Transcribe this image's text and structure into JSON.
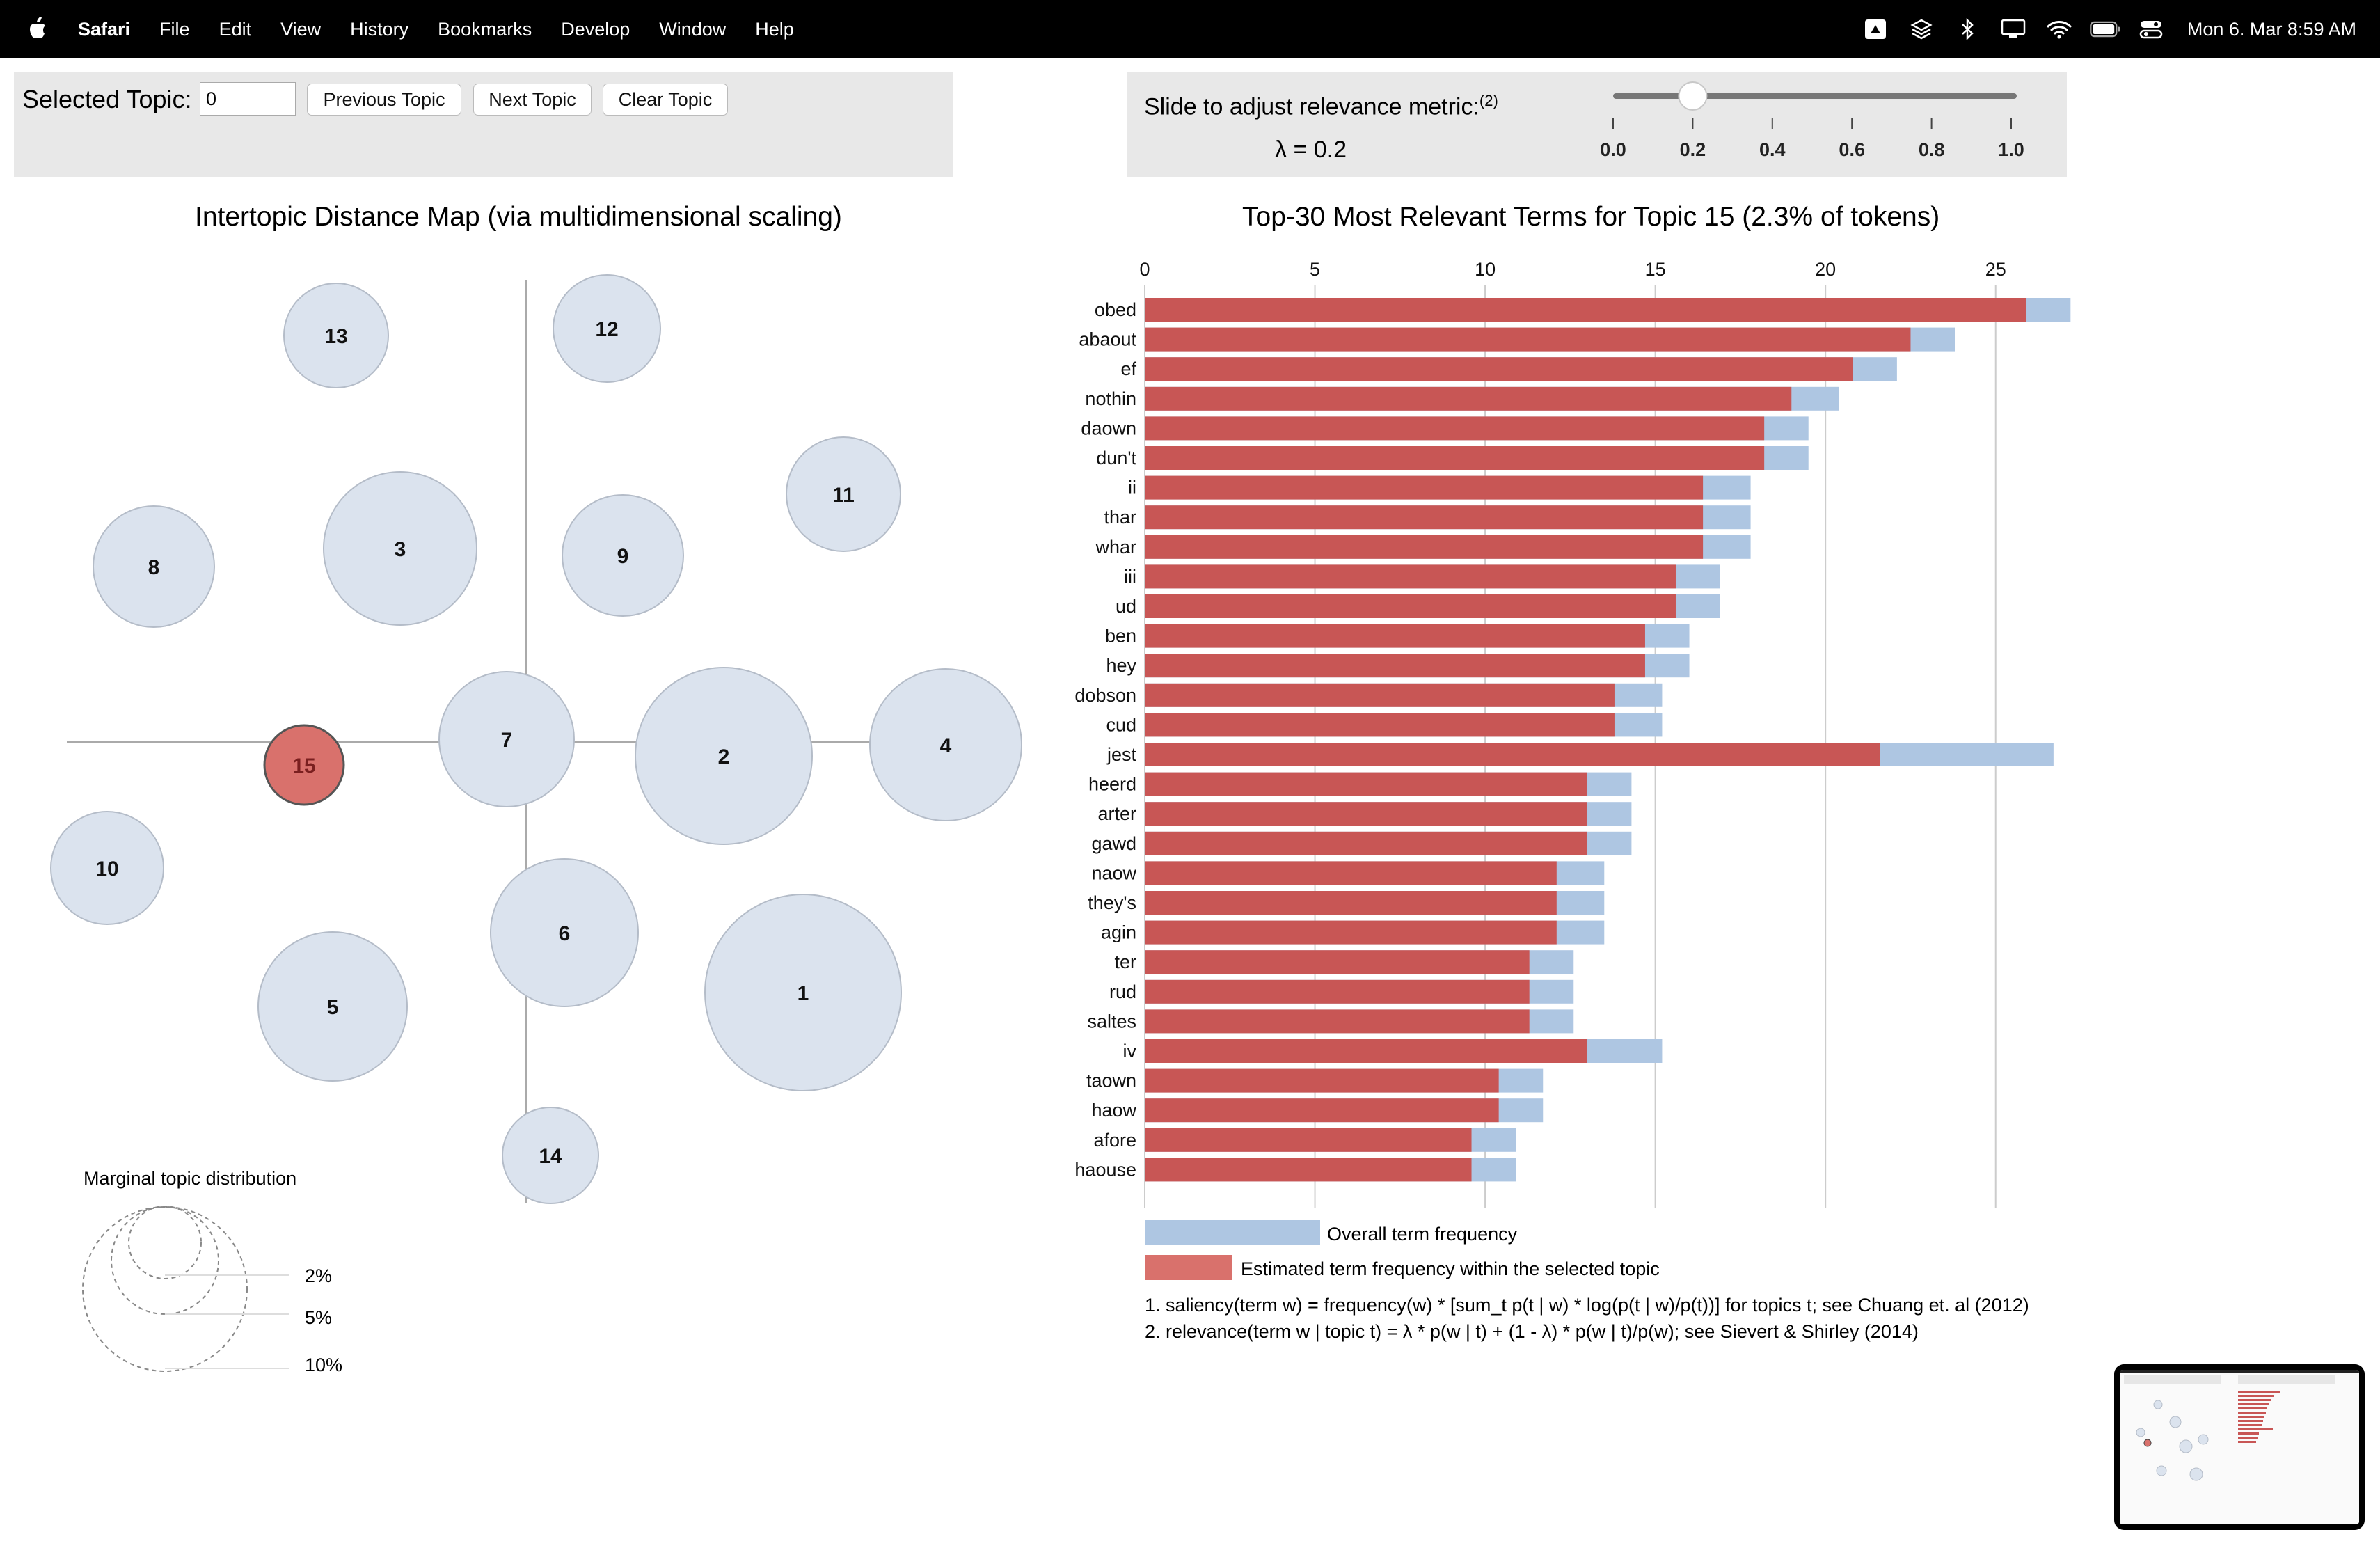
{
  "menubar": {
    "app": "Safari",
    "menus": [
      "File",
      "Edit",
      "View",
      "History",
      "Bookmarks",
      "Develop",
      "Window",
      "Help"
    ],
    "clock": "Mon 6. Mar  8:59 AM",
    "status_icons": [
      "drive-icon",
      "layers-icon",
      "bluetooth-icon",
      "display-icon",
      "wifi-icon",
      "battery-icon",
      "control-center-icon"
    ]
  },
  "topic_panel": {
    "label": "Selected Topic:",
    "input_value": "0",
    "prev_label": "Previous Topic",
    "next_label": "Next Topic",
    "clear_label": "Clear Topic"
  },
  "slider_panel": {
    "label": "Slide to adjust relevance metric:",
    "footnote_ref": "(2)",
    "lambda_text": "λ = 0.2",
    "lambda_value": 0.2,
    "ticks": [
      "0.0",
      "0.2",
      "0.4",
      "0.6",
      "0.8",
      "1.0"
    ]
  },
  "map": {
    "title": "Intertopic Distance Map (via multidimensional scaling)",
    "selected_topic": "15",
    "colors": {
      "default_fill": "#dbe3ee",
      "selected_fill": "#d9716c",
      "stroke": "#b4bcc8",
      "axis": "#aaaaaa"
    },
    "topics": [
      {
        "label": "13"
      },
      {
        "label": "12"
      },
      {
        "label": "11"
      },
      {
        "label": "8"
      },
      {
        "label": "3"
      },
      {
        "label": "9"
      },
      {
        "label": "7"
      },
      {
        "label": "2"
      },
      {
        "label": "4"
      },
      {
        "label": "15"
      },
      {
        "label": "10"
      },
      {
        "label": "6"
      },
      {
        "label": "1"
      },
      {
        "label": "5"
      },
      {
        "label": "14"
      }
    ],
    "legend": {
      "title": "Marginal topic distribution",
      "labels": [
        "2%",
        "5%",
        "10%"
      ]
    }
  },
  "chart_data": {
    "type": "bar",
    "orientation": "horizontal",
    "title": "Top-30 Most Relevant Terms for Topic 15 (2.3% of tokens)",
    "xlim": [
      0,
      27.5
    ],
    "xticks": [
      0,
      5,
      10,
      15,
      20,
      25
    ],
    "categories": [
      "obed",
      "abaout",
      "ef",
      "nothin",
      "daown",
      "dun't",
      "ii",
      "thar",
      "whar",
      "iii",
      "ud",
      "ben",
      "hey",
      "dobson",
      "cud",
      "jest",
      "heerd",
      "arter",
      "gawd",
      "naow",
      "they's",
      "agin",
      "ter",
      "rud",
      "saltes",
      "iv",
      "taown",
      "haow",
      "afore",
      "haouse"
    ],
    "series": [
      {
        "name": "Overall term frequency",
        "color": "#aec6e2",
        "values": [
          27.2,
          23.8,
          22.1,
          20.4,
          19.5,
          19.5,
          17.8,
          17.8,
          17.8,
          16.9,
          16.9,
          16.0,
          16.0,
          15.2,
          15.2,
          26.7,
          14.3,
          14.3,
          14.3,
          13.5,
          13.5,
          13.5,
          12.6,
          12.6,
          12.6,
          15.2,
          11.7,
          11.7,
          10.9,
          10.9
        ]
      },
      {
        "name": "Estimated term frequency within the selected topic",
        "color": "#c85655",
        "values": [
          25.9,
          22.5,
          20.8,
          19.0,
          18.2,
          18.2,
          16.4,
          16.4,
          16.4,
          15.6,
          15.6,
          14.7,
          14.7,
          13.8,
          13.8,
          21.6,
          13.0,
          13.0,
          13.0,
          12.1,
          12.1,
          12.1,
          11.3,
          11.3,
          11.3,
          13.0,
          10.4,
          10.4,
          9.6,
          9.6
        ]
      }
    ]
  },
  "footnotes": [
    "1. saliency(term w) = frequency(w) * [sum_t p(t | w) * log(p(t | w)/p(t))] for topics t; see Chuang et. al (2012)",
    "2. relevance(term w | topic t) = λ * p(w | t) + (1 - λ) * p(w | t)/p(w); see Sievert & Shirley (2014)"
  ]
}
